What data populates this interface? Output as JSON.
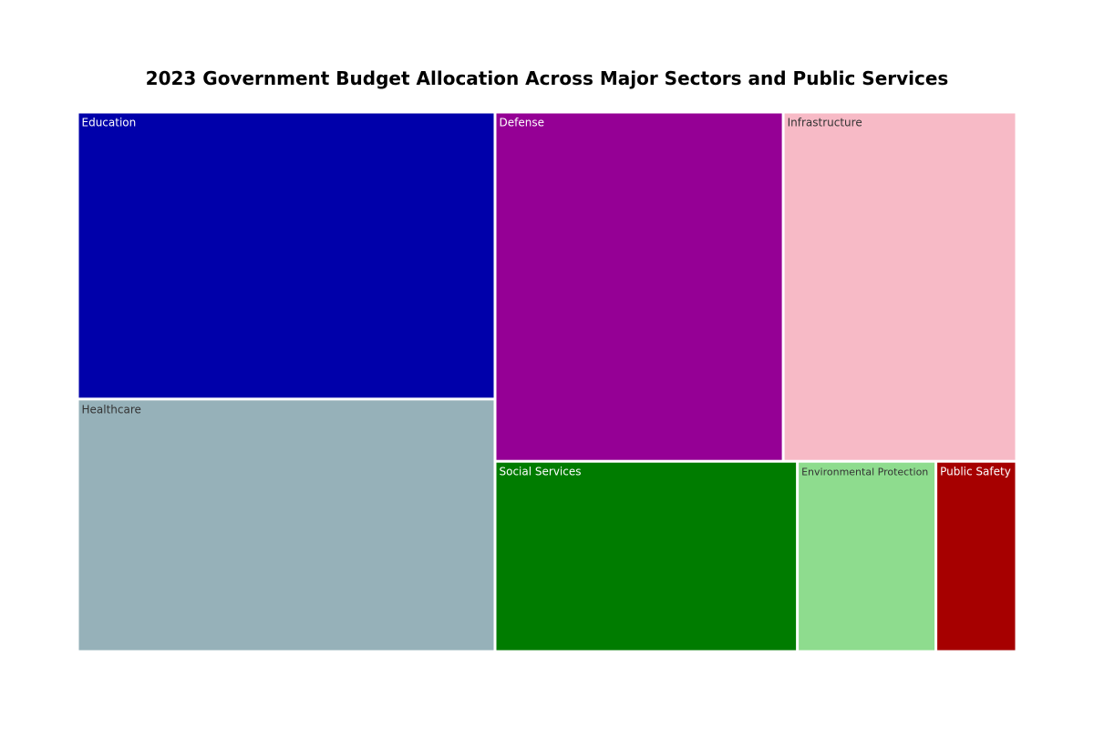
{
  "chart_data": {
    "type": "treemap",
    "title": "2023 Government Budget Allocation Across Major Sectors and Public Services",
    "items": [
      {
        "name": "Education",
        "value": 25,
        "color": "#0000AA",
        "label_color": "#ffffff"
      },
      {
        "name": "Healthcare",
        "value": 22,
        "color": "#96B1B9",
        "label_color": "#333333"
      },
      {
        "name": "Defense",
        "value": 21,
        "color": "#950095",
        "label_color": "#ffffff"
      },
      {
        "name": "Infrastructure",
        "value": 17,
        "color": "#F7BAC6",
        "label_color": "#333333"
      },
      {
        "name": "Social Services",
        "value": 12,
        "color": "#007C00",
        "label_color": "#ffffff"
      },
      {
        "name": "Environmental Protection",
        "value": 5.5,
        "color": "#8EDC8E",
        "label_color": "#333333"
      },
      {
        "name": "Public Safety",
        "value": 3.2,
        "color": "#A60000",
        "label_color": "#ffffff"
      }
    ]
  }
}
